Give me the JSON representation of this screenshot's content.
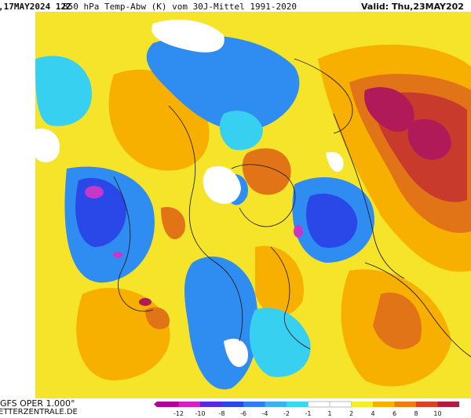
{
  "header": {
    "run_label": ",17MAY2024 12Z",
    "title": "850 hPa Temp-Abw (K) vom 30J-Mittel 1991-2020",
    "valid_label": "Valid: Thu,23MAY202"
  },
  "footer": {
    "model": "GFS OPER 1.000°",
    "site": "ETTERZENTRALE.DE"
  },
  "colorbar": {
    "labels": [
      "-12",
      "-10",
      "-8",
      "-6",
      "-4",
      "-2",
      "-1",
      "1",
      "2",
      "4",
      "6",
      "8",
      "10"
    ],
    "colors": [
      "#b0009a",
      "#d020c8",
      "#5a28e0",
      "#2a48e8",
      "#2f7ef0",
      "#3cb0f0",
      "#38d8f0",
      "#ffffff",
      "#ffffff",
      "#f5ec2a",
      "#f8b000",
      "#ee7a10",
      "#d8421e",
      "#b21c3e"
    ]
  },
  "map": {
    "colors": {
      "strong_cold": "#c838c8",
      "very_cold": "#2a48e8",
      "cold": "#2f8cf0",
      "cool": "#38d0f0",
      "neutral": "#ffffff",
      "warm": "#f5e42a",
      "warmer": "#f8b000",
      "hot": "#e27418",
      "very_hot": "#c83a2c",
      "extreme": "#b01a58"
    }
  }
}
